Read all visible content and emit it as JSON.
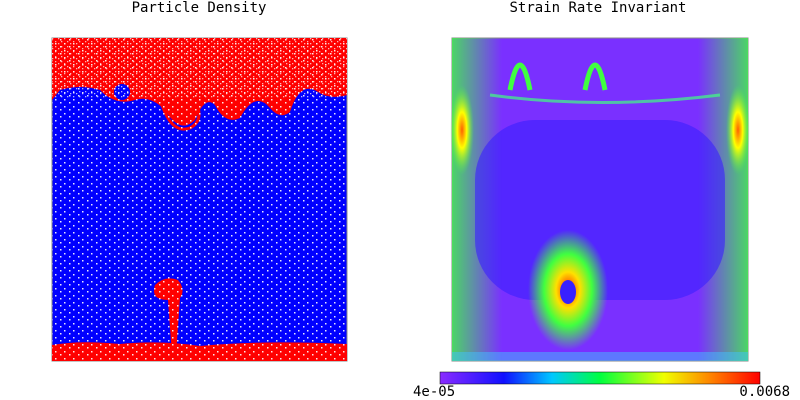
{
  "panels": [
    {
      "title": "Particle Density"
    },
    {
      "title": "Strain Rate Invariant"
    }
  ],
  "colorbar": {
    "min_label": "4e-05",
    "max_label": "0.0068"
  }
}
